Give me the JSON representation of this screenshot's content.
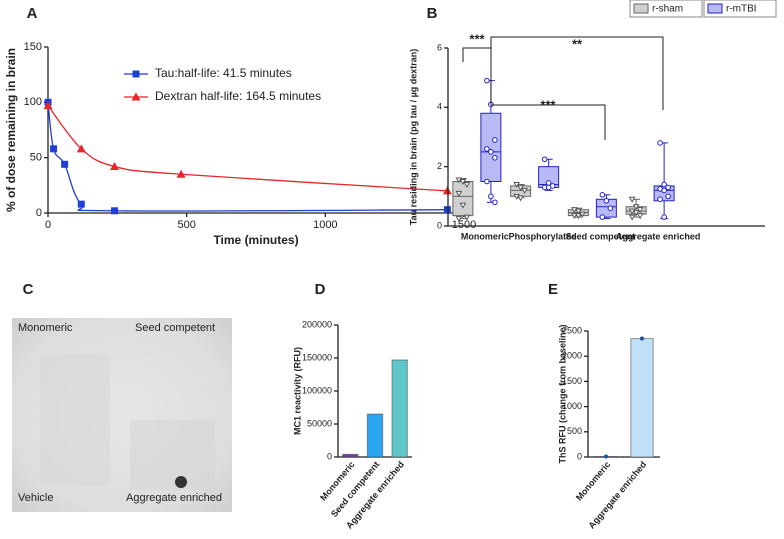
{
  "chart_data": [
    {
      "type": "line",
      "label": "A",
      "xlabel": "Time (minutes)",
      "ylabel": "% of dose remaining in brain",
      "xlim": [
        0,
        1500
      ],
      "xticks": [
        0,
        500,
        1000,
        1500
      ],
      "ylim": [
        0,
        150
      ],
      "yticks": [
        0,
        50,
        100,
        150
      ],
      "series": [
        {
          "name": "Tau:half-life: 41.5 minutes",
          "color": "#1f3fd6",
          "marker": "square",
          "x": [
            0,
            20,
            60,
            120,
            240,
            1440
          ],
          "values": [
            100,
            58,
            44,
            8,
            2,
            3
          ]
        },
        {
          "name": "Dextran half-life: 164.5 minutes",
          "color": "#e8252a",
          "marker": "triangle",
          "x": [
            0,
            120,
            240,
            480,
            1440
          ],
          "values": [
            97,
            58,
            42,
            35,
            20
          ]
        }
      ]
    },
    {
      "type": "box",
      "label": "B",
      "ylabel": "Tau residing in brain (pg tau / µg dextran)",
      "categories": [
        "Monomeric",
        "Phosphorylated",
        "Seed competent",
        "Aggregate enriched"
      ],
      "ylim": [
        0,
        6
      ],
      "yticks": [
        0,
        2,
        4,
        6
      ],
      "series": [
        {
          "name": "r-sham",
          "color": "#d0d0d0",
          "edge": "#666666",
          "boxes": [
            {
              "min": 0.25,
              "q1": 0.35,
              "median": 1.0,
              "q3": 1.5,
              "max": 1.6,
              "points": [
                1.55,
                1.5,
                1.4,
                1.1,
                0.7,
                0.3,
                0.25
              ]
            },
            {
              "min": 0.95,
              "q1": 1.0,
              "median": 1.2,
              "q3": 1.35,
              "max": 1.4,
              "points": [
                1.4,
                1.3,
                1.2,
                1.0,
                0.95
              ]
            },
            {
              "min": 0.3,
              "q1": 0.35,
              "median": 0.45,
              "q3": 0.55,
              "max": 0.6,
              "points": [
                0.55,
                0.5,
                0.4,
                0.35,
                0.35
              ]
            },
            {
              "min": 0.3,
              "q1": 0.4,
              "median": 0.5,
              "q3": 0.65,
              "max": 0.9,
              "points": [
                0.9,
                0.65,
                0.55,
                0.5,
                0.45,
                0.35,
                0.3
              ]
            }
          ]
        },
        {
          "name": "r-mTBI",
          "color": "#b9b9f5",
          "edge": "#2323c8",
          "boxes": [
            {
              "min": 0.8,
              "q1": 1.5,
              "median": 2.5,
              "q3": 3.8,
              "max": 4.9,
              "points": [
                4.9,
                4.1,
                2.9,
                2.6,
                2.5,
                2.3,
                1.5,
                1.0,
                0.8
              ]
            },
            {
              "min": 1.2,
              "q1": 1.3,
              "median": 1.4,
              "q3": 2.0,
              "max": 2.25,
              "points": [
                2.25,
                1.45,
                1.35,
                1.3,
                1.3
              ]
            },
            {
              "min": 0.25,
              "q1": 0.3,
              "median": 0.65,
              "q3": 0.9,
              "max": 1.05,
              "points": [
                1.05,
                0.85,
                0.6,
                0.3
              ]
            },
            {
              "min": 0.25,
              "q1": 0.85,
              "median": 1.2,
              "q3": 1.35,
              "max": 2.8,
              "points": [
                2.8,
                1.4,
                1.3,
                1.25,
                1.2,
                1.0,
                0.9,
                0.3
              ]
            }
          ]
        }
      ],
      "annotations": [
        {
          "text": "***"
        },
        {
          "text": "***"
        },
        {
          "text": "**"
        }
      ]
    },
    {
      "type": "image",
      "label": "C",
      "texts": [
        "Monomeric",
        "Seed competent",
        "Vehicle",
        "Aggregate enriched"
      ]
    },
    {
      "type": "bar",
      "label": "D",
      "ylabel": "MC1 reactivity (RFU)",
      "categories": [
        "Monomeric",
        "Seed competent",
        "Aggregate enriched"
      ],
      "values": [
        4000,
        65000,
        147000
      ],
      "colors": [
        "#6a3fa8",
        "#2aa5f0",
        "#5fc7c9"
      ],
      "ylim": [
        0,
        200000
      ],
      "yticks": [
        0,
        50000,
        100000,
        150000,
        200000
      ]
    },
    {
      "type": "bar",
      "label": "E",
      "ylabel": "ThS RFU (change from baseline)",
      "categories": [
        "Monomeric",
        "Aggregate enriched"
      ],
      "values": [
        10,
        2350
      ],
      "colors": [
        "#6a3fa8",
        "#bfe0f7"
      ],
      "points": true,
      "ylim": [
        0,
        2500
      ],
      "yticks": [
        0,
        500,
        1000,
        1500,
        2000,
        2500
      ]
    }
  ]
}
